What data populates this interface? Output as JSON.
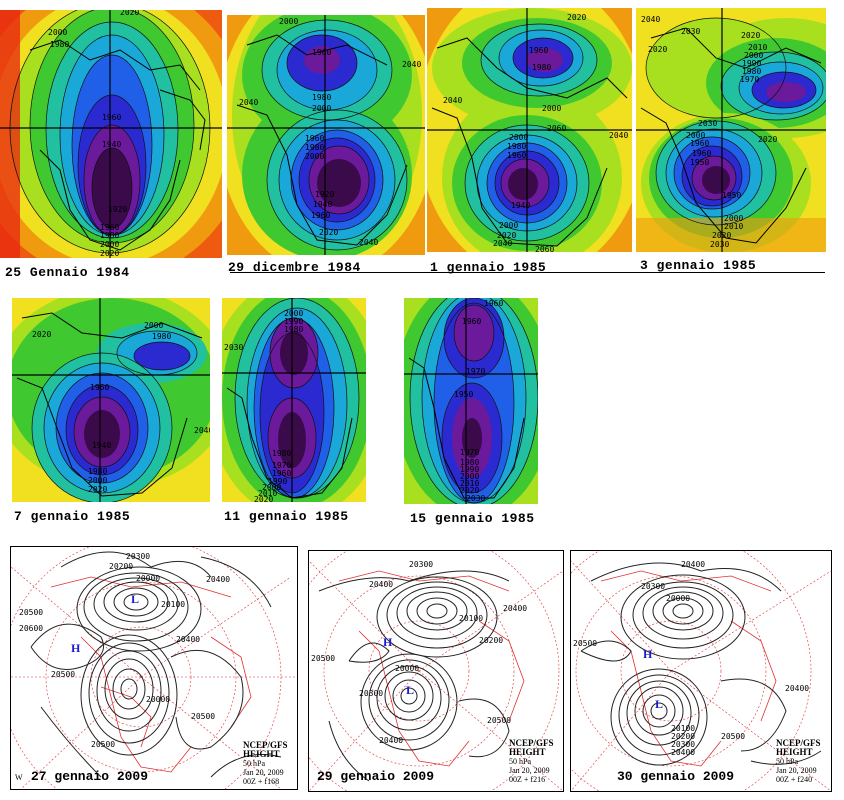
{
  "colors": {
    "purple_core": "#3a0a4a",
    "purple": "#6a1a9a",
    "blue_dark": "#2a2ad0",
    "blue": "#2060e8",
    "cyan": "#1aa8d8",
    "teal": "#20c0a0",
    "green": "#40c830",
    "lime": "#a8e020",
    "yellow": "#f0e020",
    "orange": "#f09a10",
    "red_orange": "#ee5a10",
    "red": "#e82a10",
    "contour_black": "#111111",
    "coast_red": "#e03030"
  },
  "panels_1984_85": [
    {
      "caption": "25 Gennaio 1984",
      "labels": [
        "2020",
        "2000",
        "1980",
        "1960",
        "1940",
        "1920",
        "1960",
        "1980",
        "2000",
        "2020"
      ]
    },
    {
      "caption": "29 dicembre 1984",
      "labels": [
        "2000",
        "1960",
        "1980",
        "2000",
        "2040",
        "1960",
        "1980",
        "2000",
        "1920",
        "1940",
        "1960",
        "2020",
        "2040",
        "2040"
      ]
    },
    {
      "caption": "1 gennaio 1985",
      "labels": [
        "2020",
        "1960",
        "1980",
        "2000",
        "2040",
        "2000",
        "1980",
        "1960",
        "1940",
        "2000",
        "2020",
        "2040",
        "2060",
        "2040",
        "2060"
      ]
    },
    {
      "caption": "3 gennaio 1985",
      "labels": [
        "2040",
        "2020",
        "2030",
        "2020",
        "2010",
        "2000",
        "1990",
        "1980",
        "1970",
        "2030",
        "2000",
        "1960",
        "1950",
        "2020",
        "1960",
        "1950",
        "2000",
        "2010",
        "2020",
        "2030"
      ]
    },
    {
      "caption": "7 gennaio 1985",
      "labels": [
        "2020",
        "2000",
        "1980",
        "1960",
        "1940",
        "1980",
        "2000",
        "2020",
        "2040"
      ]
    },
    {
      "caption": "11 gennaio 1985",
      "labels": [
        "2000",
        "1990",
        "1980",
        "2030",
        "1980",
        "1970",
        "1960",
        "1990",
        "2000",
        "2010",
        "2020"
      ]
    },
    {
      "caption": "15 gennaio 1985",
      "labels": [
        "1960",
        "1960",
        "1970",
        "1950",
        "1970",
        "1980",
        "1990",
        "2000",
        "2010",
        "2020",
        "2030"
      ]
    }
  ],
  "panels_2009": [
    {
      "caption": "27 gennaio 2009",
      "labels": [
        "20300",
        "20200",
        "20000",
        "20100",
        "20500",
        "20600",
        "20500",
        "20400",
        "20500",
        "20500",
        "20000",
        "20400"
      ],
      "H": "H",
      "L_top": "L",
      "L_bottom": "",
      "info": [
        "NCEP/GFS",
        "HEIGHT",
        "50 hPa",
        "Jan 20, 2009",
        "00Z + f168"
      ],
      "corner_tick": "W"
    },
    {
      "caption": "29 gennaio 2009",
      "labels": [
        "20400",
        "20300",
        "20500",
        "20200",
        "20400",
        "20100",
        "20300",
        "20500",
        "20400",
        "20000"
      ],
      "H": "H",
      "L_top": "",
      "L_bottom": "L",
      "info": [
        "NCEP/GFS",
        "HEIGHT",
        "50 hPa",
        "Jan 20, 2009",
        "00Z + f216"
      ],
      "corner_tick": ""
    },
    {
      "caption": "30 gennaio 2009",
      "labels": [
        "20400",
        "20300",
        "20500",
        "20400",
        "20000",
        "20100",
        "20200",
        "20300",
        "20400",
        "20500"
      ],
      "H": "H",
      "L_top": "",
      "L_bottom": "L",
      "info": [
        "NCEP/GFS",
        "HEIGHT",
        "50 hPa",
        "Jan 20, 2009",
        "00Z + f240"
      ],
      "corner_tick": ""
    }
  ]
}
